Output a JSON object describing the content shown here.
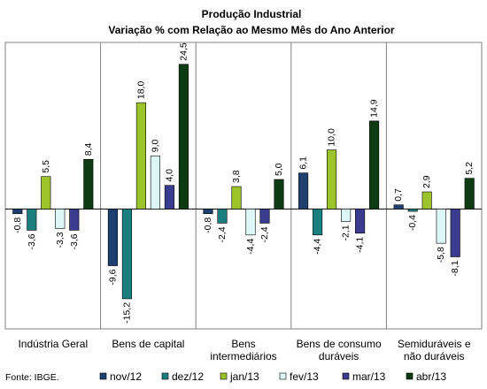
{
  "chart_data": {
    "type": "bar",
    "title": "Produção Industrial",
    "subtitle": "Variação % com Relação ao Mesmo Mês do Ano Anterior",
    "source": "Fonte: IBGE.",
    "categories": [
      [
        "Indústria Geral"
      ],
      [
        "Bens de capital"
      ],
      [
        "Bens",
        "intermediários"
      ],
      [
        "Bens de consumo",
        "duráveis"
      ],
      [
        "Semiduráveis e",
        "não duráveis"
      ]
    ],
    "series": [
      {
        "name": "nov/12",
        "color": "#1F3F6F",
        "values": [
          -0.8,
          -9.6,
          -0.8,
          6.1,
          0.7
        ]
      },
      {
        "name": "dez/12",
        "color": "#1C7F7F",
        "values": [
          -3.6,
          -15.2,
          -2.4,
          -4.4,
          -0.4
        ]
      },
      {
        "name": "jan/13",
        "color": "#9CC42A",
        "values": [
          5.5,
          18.0,
          3.8,
          10.0,
          2.9
        ]
      },
      {
        "name": "fev/13",
        "color": "#DDF6F6",
        "values": [
          -3.3,
          9.0,
          -4.4,
          -2.1,
          -5.8
        ]
      },
      {
        "name": "mar/13",
        "color": "#3B3B8F",
        "values": [
          -3.6,
          4.0,
          -2.4,
          -4.1,
          -8.1
        ]
      },
      {
        "name": "abr/13",
        "color": "#0E3A14",
        "values": [
          8.4,
          24.5,
          5.0,
          14.9,
          5.2
        ]
      }
    ],
    "ylim": [
      -18.5,
      27
    ],
    "legend_position": "bottom",
    "grid": false
  }
}
